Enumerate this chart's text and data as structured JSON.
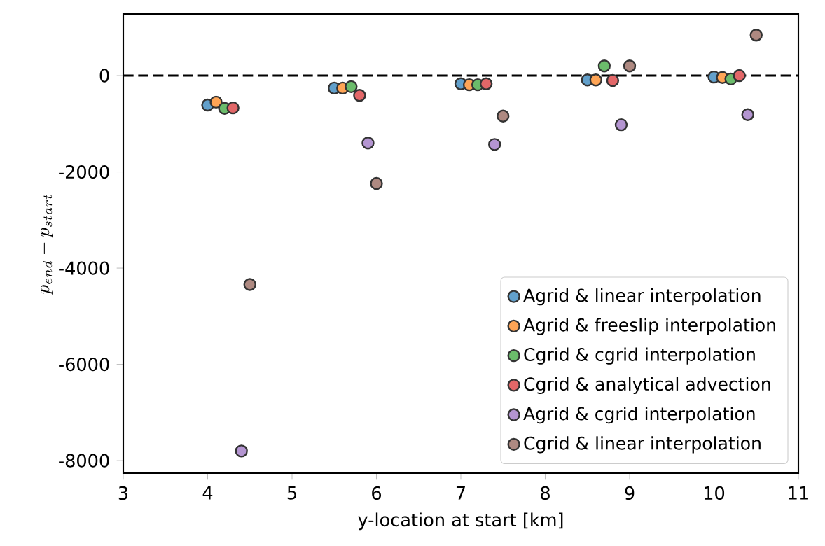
{
  "chart_data": {
    "type": "scatter",
    "xlabel": "y-location at start [km]",
    "ylabel": "p_{end} - p_{start}",
    "xlim": [
      3,
      11
    ],
    "xticks": [
      3,
      4,
      5,
      6,
      7,
      8,
      9,
      10,
      11
    ],
    "ylim": [
      -8260,
      1280
    ],
    "yticks": [
      -8000,
      -6000,
      -4000,
      -2000,
      0
    ],
    "marker": "circle",
    "legend": "bottom right",
    "grid": false,
    "ref_lines": [
      {
        "axis": "y",
        "value": 0,
        "color": "#000000",
        "line_style": "dashed"
      }
    ],
    "series": [
      {
        "name": "Agrid & linear interpolation",
        "color": "#62a0cb",
        "x": [
          4.0,
          5.5,
          7.0,
          8.5,
          10.0
        ],
        "values": [
          -610,
          -260,
          -170,
          -90,
          -30
        ]
      },
      {
        "name": "Agrid & freeslip interpolation",
        "color": "#ffa556",
        "x": [
          4.1,
          5.6,
          7.1,
          8.6,
          10.1
        ],
        "values": [
          -550,
          -260,
          -190,
          -90,
          -40
        ]
      },
      {
        "name": "Cgrid & cgrid interpolation",
        "color": "#6bbc6b",
        "x": [
          4.2,
          5.7,
          7.2,
          8.7,
          10.2
        ],
        "values": [
          -680,
          -230,
          -190,
          200,
          -70
        ]
      },
      {
        "name": "Cgrid & analytical advection",
        "color": "#e26768",
        "x": [
          4.3,
          5.8,
          7.3,
          8.8,
          10.3
        ],
        "values": [
          -670,
          -410,
          -170,
          -100,
          0
        ]
      },
      {
        "name": "Agrid & cgrid interpolation",
        "color": "#b495d1",
        "x": [
          4.4,
          5.9,
          7.4,
          8.9,
          10.4
        ],
        "values": [
          -7800,
          -1400,
          -1430,
          -1020,
          -810
        ]
      },
      {
        "name": "Cgrid & linear interpolation",
        "color": "#ae8981",
        "x": [
          4.5,
          6.0,
          7.5,
          9.0,
          10.5
        ],
        "values": [
          -4340,
          -2240,
          -840,
          200,
          840
        ]
      }
    ]
  }
}
